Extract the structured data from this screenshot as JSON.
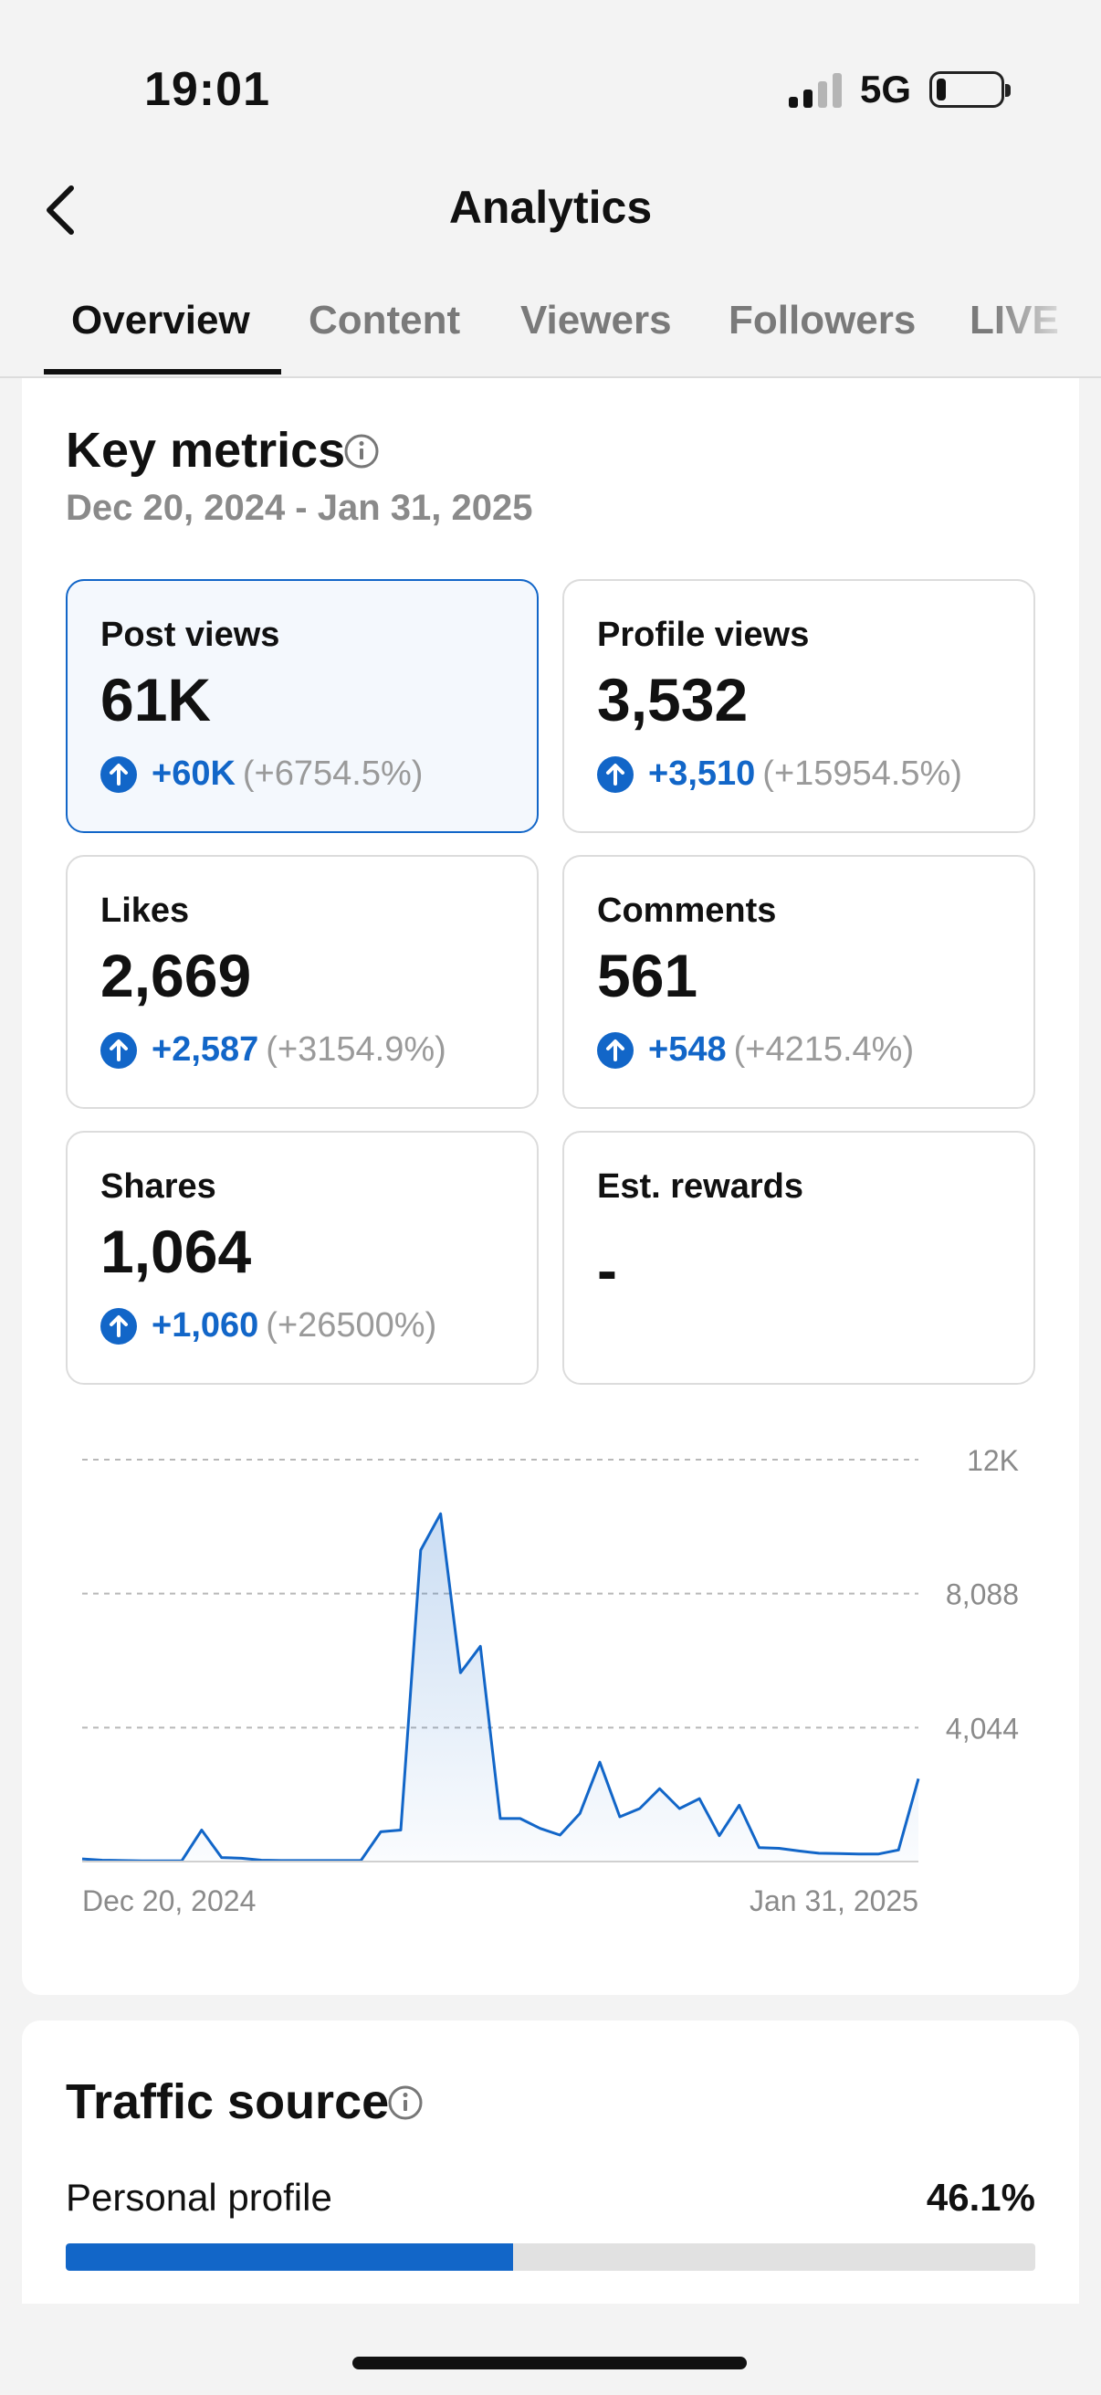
{
  "status_bar": {
    "time": "19:01",
    "network": "5G"
  },
  "header": {
    "title": "Analytics"
  },
  "tabs": [
    {
      "label": "Overview",
      "active": true
    },
    {
      "label": "Content",
      "active": false
    },
    {
      "label": "Viewers",
      "active": false
    },
    {
      "label": "Followers",
      "active": false
    },
    {
      "label": "LIVE",
      "active": false
    }
  ],
  "key_metrics": {
    "title": "Key metrics",
    "date_range": "Dec 20, 2024 - Jan 31, 2025",
    "metrics": [
      {
        "label": "Post views",
        "value": "61K",
        "change": "+60K",
        "change_pct": "(+6754.5%)",
        "selected": true
      },
      {
        "label": "Profile views",
        "value": "3,532",
        "change": "+3,510",
        "change_pct": "(+15954.5%)"
      },
      {
        "label": "Likes",
        "value": "2,669",
        "change": "+2,587",
        "change_pct": "(+3154.9%)"
      },
      {
        "label": "Comments",
        "value": "561",
        "change": "+548",
        "change_pct": "(+4215.4%)"
      },
      {
        "label": "Shares",
        "value": "1,064",
        "change": "+1,060",
        "change_pct": "(+26500%)"
      },
      {
        "label": "Est. rewards",
        "value": "-",
        "change": "",
        "change_pct": ""
      }
    ]
  },
  "chart_data": {
    "type": "area",
    "title": "",
    "xlabel": "",
    "ylabel": "",
    "x_start_label": "Dec 20, 2024",
    "x_end_label": "Jan 31, 2025",
    "y_ticks": [
      "12K",
      "8,088",
      "4,044"
    ],
    "ylim": [
      0,
      12132
    ],
    "grid": true,
    "color": "#1266c8",
    "values": [
      80,
      40,
      30,
      20,
      20,
      20,
      950,
      120,
      100,
      40,
      30,
      30,
      30,
      30,
      30,
      900,
      950,
      9400,
      10500,
      5700,
      6500,
      1300,
      1300,
      1000,
      800,
      1450,
      3000,
      1350,
      1600,
      2200,
      1600,
      1900,
      780,
      1700,
      420,
      400,
      320,
      250,
      240,
      230,
      230,
      350,
      2500
    ]
  },
  "traffic_source": {
    "title": "Traffic source",
    "rows": [
      {
        "label": "Personal profile",
        "value": "46.1%",
        "fraction": 0.461
      }
    ]
  },
  "colors": {
    "accent": "#1266c8",
    "background": "#f3f3f3",
    "card": "#ffffff"
  }
}
